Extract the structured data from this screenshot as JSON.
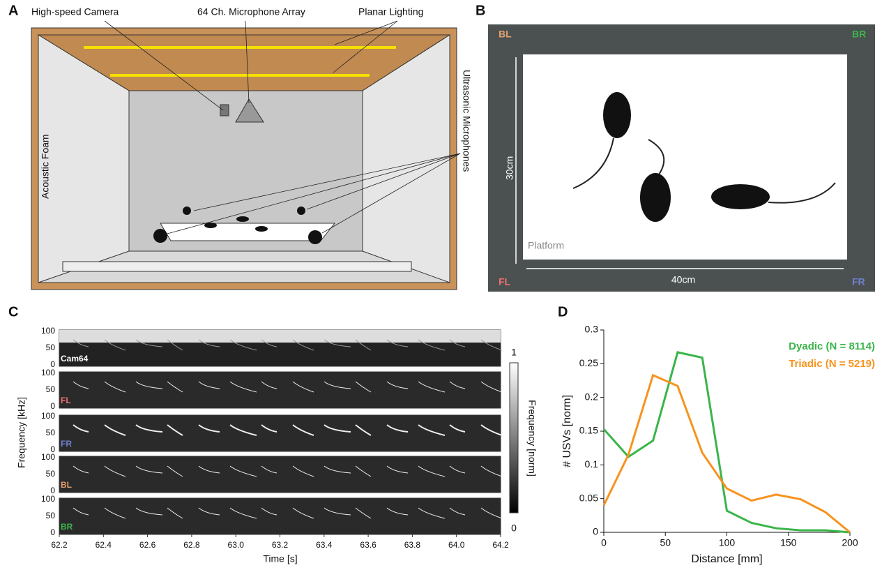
{
  "panels": {
    "A": {
      "label": "A",
      "camera": "High-speed Camera",
      "array": "64 Ch. Microphone Array",
      "lighting": "Planar Lighting",
      "foam": "Acoustic Foam",
      "mics": "Ultrasonic Microphones"
    },
    "B": {
      "label": "B",
      "corners": [
        "BL",
        "BR",
        "FL",
        "FR"
      ],
      "height": "30cm",
      "width": "40cm",
      "platform": "Platform"
    },
    "C": {
      "label": "C",
      "rows": [
        "Cam64",
        "FL",
        "FR",
        "BL",
        "BR"
      ],
      "yticks": [
        "100",
        "50",
        "0"
      ],
      "xticks": [
        "62.2",
        "62.4",
        "62.6",
        "62.8",
        "63.0",
        "63.2",
        "63.4",
        "63.6",
        "63.8",
        "64.0",
        "64.2"
      ],
      "ylabel": "Frequency [kHz]",
      "xlabel": "Time [s]",
      "colorbar_label": "Frequency [norm]",
      "colorbar_ticks": [
        "1",
        "0"
      ]
    }
  },
  "chart_data": {
    "type": "line",
    "panel": "D",
    "x": [
      0,
      20,
      40,
      60,
      80,
      100,
      120,
      140,
      160,
      180,
      200
    ],
    "series": [
      {
        "name": "Dyadic (N = 8114)",
        "color": "#3ab54a",
        "values": [
          0.153,
          0.112,
          0.136,
          0.267,
          0.259,
          0.032,
          0.014,
          0.006,
          0.003,
          0.003,
          0
        ]
      },
      {
        "name": "Triadic (N = 5219)",
        "color": "#f7931e",
        "values": [
          0.04,
          0.115,
          0.233,
          0.217,
          0.118,
          0.065,
          0.047,
          0.056,
          0.049,
          0.03,
          0
        ]
      }
    ],
    "xlabel": "Distance [mm]",
    "ylabel": "# USVs [norm]",
    "xlim": [
      0,
      200
    ],
    "xticks": [
      0,
      50,
      100,
      150,
      200
    ],
    "ylim": [
      0,
      0.3
    ],
    "yticks": [
      0,
      0.05,
      0.1,
      0.15,
      0.2,
      0.25,
      0.3
    ]
  }
}
